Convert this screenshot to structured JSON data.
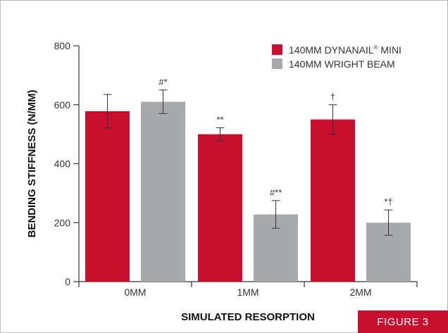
{
  "chart_data": {
    "type": "bar",
    "title": "",
    "xlabel": "SIMULATED RESORPTION",
    "ylabel": "BENDING STIFFNESS (N/MM)",
    "ylim": [
      0,
      800
    ],
    "yticks": [
      0,
      200,
      400,
      600,
      800
    ],
    "categories": [
      "0MM",
      "1MM",
      "2MM"
    ],
    "legend_position": "top-right",
    "grid": false,
    "series": [
      {
        "name": "140MM DYNANAIL® MINI",
        "color": "#c8102e",
        "values": [
          578,
          500,
          550
        ],
        "error": [
          57,
          22,
          50
        ],
        "annotations": [
          "",
          "**",
          "†"
        ]
      },
      {
        "name": "140MM WRIGHT BEAM",
        "color": "#a7a9ac",
        "values": [
          610,
          228,
          200
        ],
        "error": [
          40,
          47,
          43
        ],
        "annotations": [
          "#*",
          "#**",
          "*†"
        ]
      }
    ]
  },
  "figure_label": "FIGURE 3"
}
